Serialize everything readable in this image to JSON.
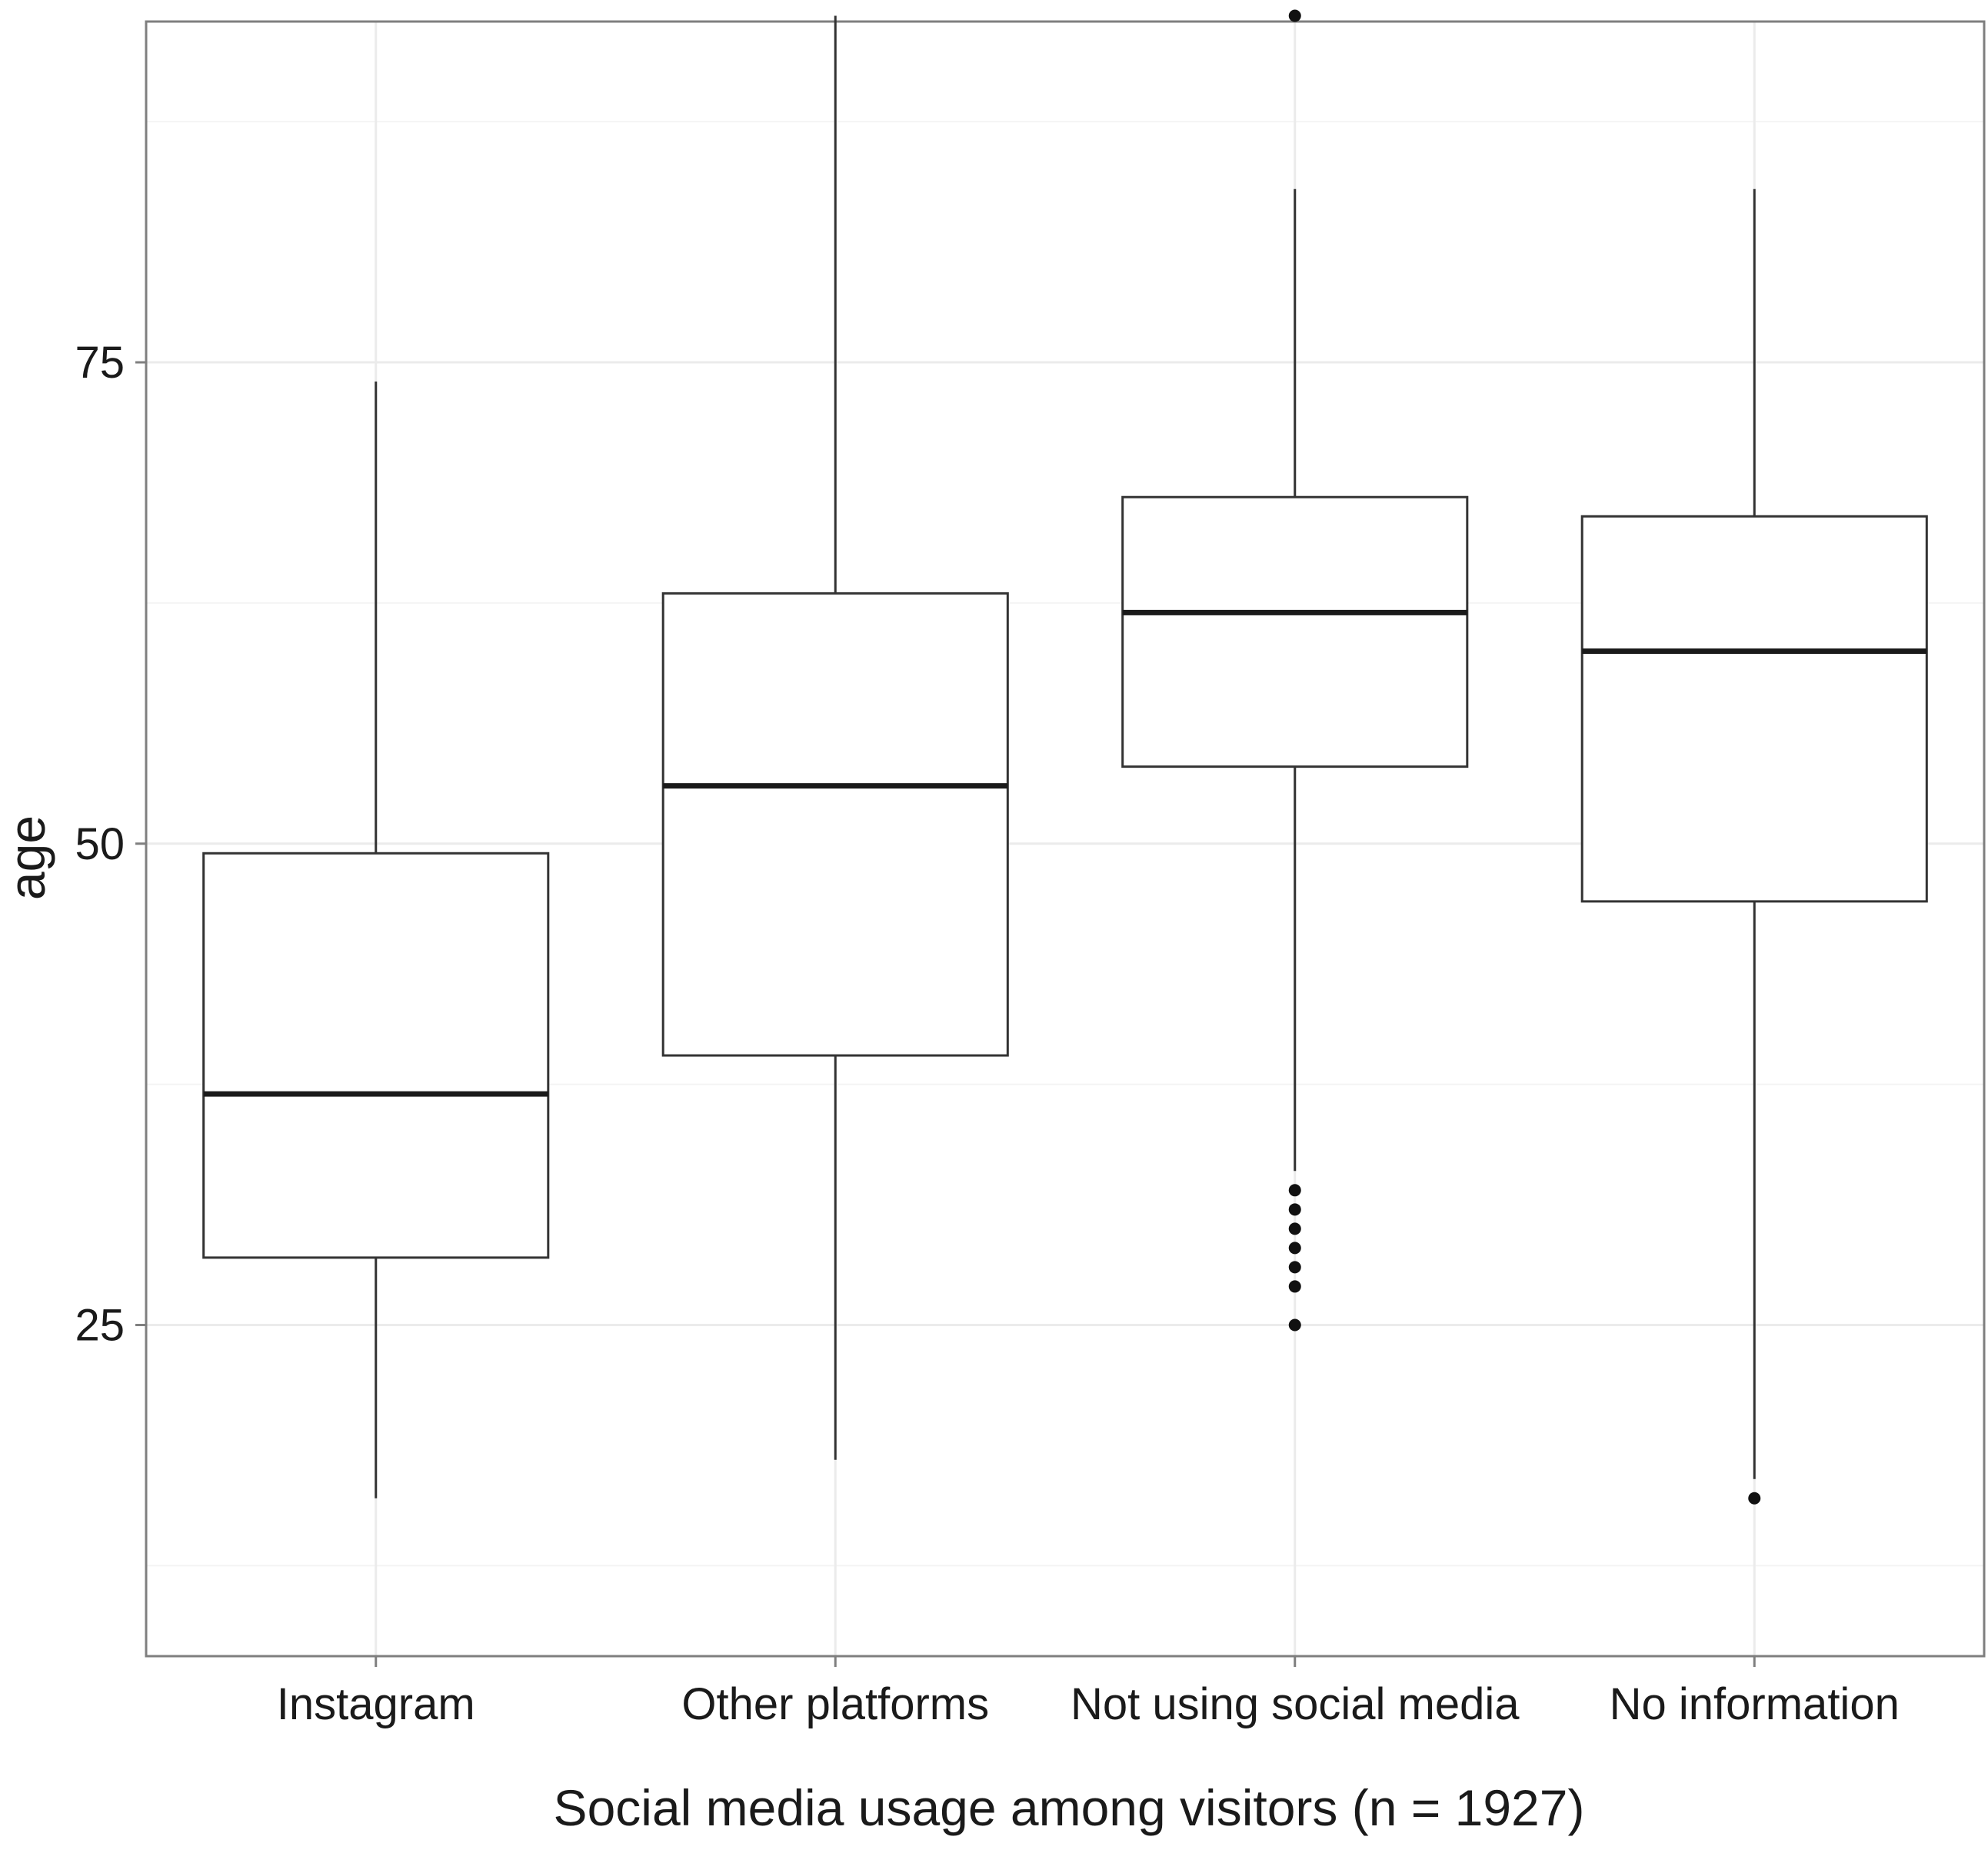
{
  "chart_data": {
    "type": "boxplot",
    "xlabel": "Social media usage among visitors (n = 1927)",
    "ylabel": "age",
    "ylim": [
      7.8,
      92.7
    ],
    "y_ticks": [
      25,
      50,
      75
    ],
    "grid": true,
    "categories": [
      "Instagram",
      "Other platforms",
      "Not using social media",
      "No information"
    ],
    "boxes": [
      {
        "category": "Instagram",
        "whisker_low": 16,
        "q1": 28.5,
        "median": 37,
        "q3": 49.5,
        "whisker_high": 74,
        "outliers": []
      },
      {
        "category": "Other platforms",
        "whisker_low": 18,
        "q1": 39,
        "median": 53,
        "q3": 63,
        "whisker_high": 93,
        "outliers": []
      },
      {
        "category": "Not using social media",
        "whisker_low": 33,
        "q1": 54,
        "median": 62,
        "q3": 68,
        "whisker_high": 84,
        "outliers": [
          25,
          27,
          28,
          29,
          30,
          31,
          32,
          93
        ]
      },
      {
        "category": "No information",
        "whisker_low": 17,
        "q1": 47,
        "median": 60,
        "q3": 67,
        "whisker_high": 84,
        "outliers": [
          16
        ]
      }
    ]
  }
}
